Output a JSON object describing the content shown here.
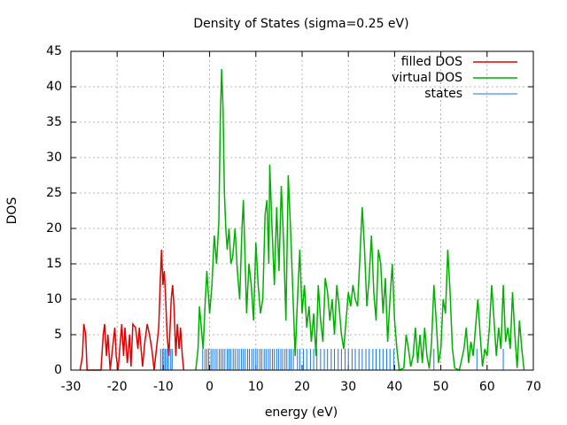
{
  "chart_data": {
    "type": "line",
    "title": "Density of States (sigma=0.25 eV)",
    "x_label": "energy (eV)",
    "y_label": "DOS",
    "xlim": [
      -30,
      70
    ],
    "xticks": [
      -30,
      -20,
      -10,
      0,
      10,
      20,
      30,
      40,
      50,
      60,
      70
    ],
    "ylim": [
      0,
      45
    ],
    "yticks": [
      0,
      5,
      10,
      15,
      20,
      25,
      30,
      35,
      40,
      45
    ],
    "grid": true,
    "legend": "top-right",
    "series": [
      {
        "name": "filled DOS",
        "color": "#e00000",
        "style": "line",
        "x": [
          -28,
          -27.5,
          -27.2,
          -26.8,
          -26.5,
          -25,
          -23.5,
          -23,
          -22.7,
          -22.3,
          -22,
          -21.5,
          -21,
          -20.5,
          -20.2,
          -19.8,
          -19.3,
          -19,
          -18.6,
          -18.3,
          -17.8,
          -17.3,
          -17,
          -16.6,
          -16,
          -15.5,
          -15.2,
          -14.5,
          -14,
          -13.5,
          -13,
          -12.5,
          -12,
          -11.5,
          -11,
          -10.7,
          -10.4,
          -10.1,
          -9.8,
          -9.5,
          -9.2,
          -8.8,
          -8.3,
          -8,
          -7.7,
          -7.3,
          -7,
          -6.6,
          -6.3,
          -5.9,
          -5.6
        ],
        "values": [
          0,
          2,
          6.5,
          5,
          0,
          0,
          0,
          5,
          6.5,
          2,
          5,
          0,
          3,
          6,
          2,
          0,
          4,
          6.5,
          2,
          6,
          1,
          5,
          0.5,
          6.5,
          6,
          3,
          6,
          0.5,
          4,
          6.5,
          5,
          3,
          0,
          3,
          6,
          12,
          17,
          12,
          14,
          10,
          5,
          2,
          10,
          12,
          9,
          2,
          6.5,
          3,
          6,
          2,
          0
        ]
      },
      {
        "name": "virtual DOS",
        "color": "#00b000",
        "style": "line",
        "x": [
          -3,
          -2.5,
          -2.2,
          -1.8,
          -1.4,
          -1,
          -0.6,
          -0.3,
          0,
          0.5,
          1,
          1.5,
          2,
          2.3,
          2.6,
          2.9,
          3.2,
          3.5,
          3.8,
          4.2,
          4.6,
          5,
          5.5,
          6,
          6.5,
          7,
          7.3,
          7.7,
          8,
          8.5,
          9,
          9.5,
          10,
          10.5,
          11,
          11.5,
          12,
          12.4,
          12.8,
          13,
          13.5,
          14,
          14.5,
          15,
          15.5,
          16,
          16.5,
          17,
          17.5,
          18,
          18.5,
          19,
          19.5,
          20,
          20.5,
          21,
          21.5,
          22,
          22.5,
          23,
          23.5,
          24,
          24.5,
          25,
          25.5,
          26,
          26.5,
          27,
          27.5,
          28,
          28.5,
          29,
          29.5,
          30,
          30.5,
          31,
          31.5,
          32,
          32.5,
          33,
          33.5,
          34,
          34.5,
          35,
          35.5,
          36,
          36.5,
          37,
          37.5,
          38,
          38.5,
          39,
          39.5,
          40,
          40.5,
          41,
          42,
          42.5,
          43,
          43.5,
          44,
          44.5,
          45,
          45.5,
          46,
          46.5,
          47,
          47.5,
          48,
          48.5,
          49,
          49.5,
          50,
          50.5,
          51,
          51.5,
          52,
          52.5,
          53,
          54,
          55,
          55.5,
          56,
          56.5,
          57,
          57.5,
          58,
          58.5,
          59,
          59.5,
          60,
          60.5,
          61,
          61.5,
          62,
          62.5,
          63,
          63.5,
          64,
          64.5,
          65,
          65.5,
          66,
          66.5,
          67,
          67.5,
          68
        ],
        "values": [
          0,
          3,
          9,
          6,
          3,
          9,
          14,
          11,
          8,
          12,
          19,
          15,
          21,
          35,
          42.5,
          37,
          25,
          20,
          17,
          20,
          15,
          16,
          20,
          14,
          10,
          20,
          24,
          15,
          8,
          15,
          12,
          7,
          18,
          12,
          8,
          10,
          22,
          24,
          15,
          29,
          20,
          12,
          23,
          14,
          26,
          18,
          7,
          27.5,
          20,
          11,
          2,
          10,
          17,
          8,
          12,
          6,
          9,
          4,
          8,
          2,
          12,
          7,
          4,
          13,
          11,
          7,
          10,
          5,
          12,
          9,
          5,
          3,
          7,
          11,
          9,
          12,
          10,
          9,
          16,
          23,
          17,
          9,
          13,
          19,
          11,
          7,
          17,
          15,
          8,
          13,
          4,
          10,
          15,
          7,
          3,
          0,
          0.3,
          5,
          3,
          0.5,
          2,
          6,
          1,
          5,
          1,
          6,
          2,
          0.2,
          4,
          12,
          7,
          1,
          3,
          10,
          8,
          17,
          11,
          3,
          0.3,
          0,
          3,
          6,
          1,
          4,
          2,
          6,
          10,
          5,
          0.5,
          3,
          2,
          6,
          12,
          7,
          2,
          6,
          3,
          12,
          4,
          6,
          3,
          11,
          5,
          0.3,
          7,
          3,
          0
        ]
      },
      {
        "name": "states",
        "color": "#1874e0",
        "style": "impulses",
        "x": [
          -10.6,
          -10.2,
          -9.9,
          -9.6,
          -9.2,
          -8.9,
          -8.4,
          -8.1,
          -1.5,
          -1,
          -0.6,
          -0.2,
          0.3,
          0.7,
          1.2,
          1.6,
          2.1,
          2.5,
          2.9,
          3.3,
          3.8,
          4.2,
          4.6,
          5.1,
          5.5,
          6,
          6.4,
          6.9,
          7.3,
          7.7,
          8.2,
          8.6,
          9.1,
          9.5,
          10,
          10.4,
          10.9,
          11.3,
          11.8,
          12.2,
          12.7,
          13.1,
          13.6,
          14,
          14.5,
          14.9,
          15.4,
          15.8,
          16.3,
          16.7,
          17.2,
          17.6,
          18.1,
          19,
          19.5,
          20.3,
          21,
          21.8,
          22.5,
          23.2,
          24,
          24.8,
          25.5,
          26.3,
          27,
          27.8,
          28.5,
          29.3,
          30,
          30.8,
          31.5,
          32.3,
          33,
          33.8,
          34.5,
          35.3,
          36,
          36.8,
          37.5,
          38.3,
          39,
          39.8,
          48.5,
          57.8,
          63.5
        ],
        "values": [
          3,
          3,
          3,
          3,
          3,
          3,
          3,
          3,
          3,
          3,
          3,
          3,
          3,
          3,
          3,
          3,
          3,
          3,
          3,
          3,
          3,
          3,
          3,
          3,
          3,
          3,
          3,
          3,
          3,
          3,
          3,
          3,
          3,
          3,
          3,
          3,
          3,
          3,
          3,
          3,
          3,
          3,
          3,
          3,
          3,
          3,
          3,
          3,
          3,
          3,
          3,
          3,
          3,
          3,
          3,
          3,
          3,
          3,
          3,
          3,
          3,
          3,
          3,
          3,
          3,
          3,
          3,
          3,
          3,
          3,
          3,
          3,
          3,
          3,
          3,
          3,
          3,
          3,
          3,
          3,
          3,
          3,
          3,
          3,
          3
        ]
      }
    ]
  }
}
